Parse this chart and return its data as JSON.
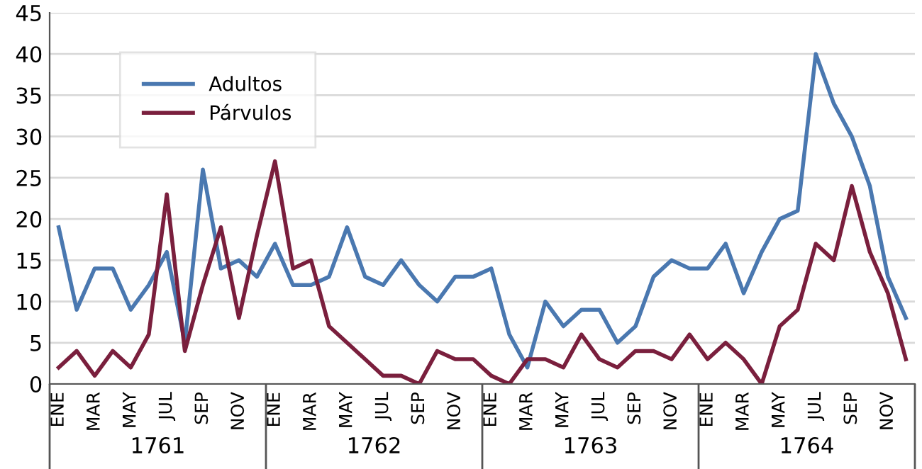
{
  "chart_data": {
    "type": "line",
    "categories": [
      "ENE",
      null,
      "MAR",
      null,
      "MAY",
      null,
      "JUL",
      null,
      "SEP",
      null,
      "NOV",
      null,
      "ENE",
      null,
      "MAR",
      null,
      "MAY",
      null,
      "JUL",
      null,
      "SEP",
      null,
      "NOV",
      null,
      "ENE",
      null,
      "MAR",
      null,
      "MAY",
      null,
      "JUL",
      null,
      "SEP",
      null,
      "NOV",
      null,
      "ENE",
      null,
      "MAR",
      null,
      "MAY",
      null,
      "JUL",
      null,
      "SEP",
      null,
      "NOV",
      null
    ],
    "series": [
      {
        "name": "Adultos",
        "color": "#4a78b0",
        "values": [
          19,
          9,
          14,
          14,
          9,
          12,
          16,
          5,
          26,
          14,
          15,
          13,
          17,
          12,
          12,
          13,
          19,
          13,
          12,
          15,
          12,
          10,
          13,
          13,
          14,
          6,
          2,
          10,
          7,
          9,
          9,
          5,
          7,
          13,
          15,
          14,
          14,
          17,
          11,
          16,
          20,
          21,
          40,
          34,
          30,
          24,
          13,
          8
        ]
      },
      {
        "name": "Párvulos",
        "color": "#7a1f3d",
        "values": [
          2,
          4,
          1,
          4,
          2,
          6,
          23,
          4,
          12,
          19,
          8,
          18,
          27,
          14,
          15,
          7,
          5,
          3,
          1,
          1,
          0,
          4,
          3,
          3,
          1,
          0,
          3,
          3,
          2,
          6,
          3,
          2,
          4,
          4,
          3,
          6,
          3,
          5,
          3,
          0,
          7,
          9,
          17,
          15,
          24,
          16,
          11,
          3
        ]
      }
    ],
    "annotations": [
      "1761",
      "1762",
      "1763",
      "1764"
    ],
    "ylim": [
      0,
      45
    ],
    "yticks": [
      0,
      5,
      10,
      15,
      20,
      25,
      30,
      35,
      40,
      45
    ],
    "grid": "y",
    "legend": "top left",
    "marker": "none",
    "line_style": "solid"
  }
}
